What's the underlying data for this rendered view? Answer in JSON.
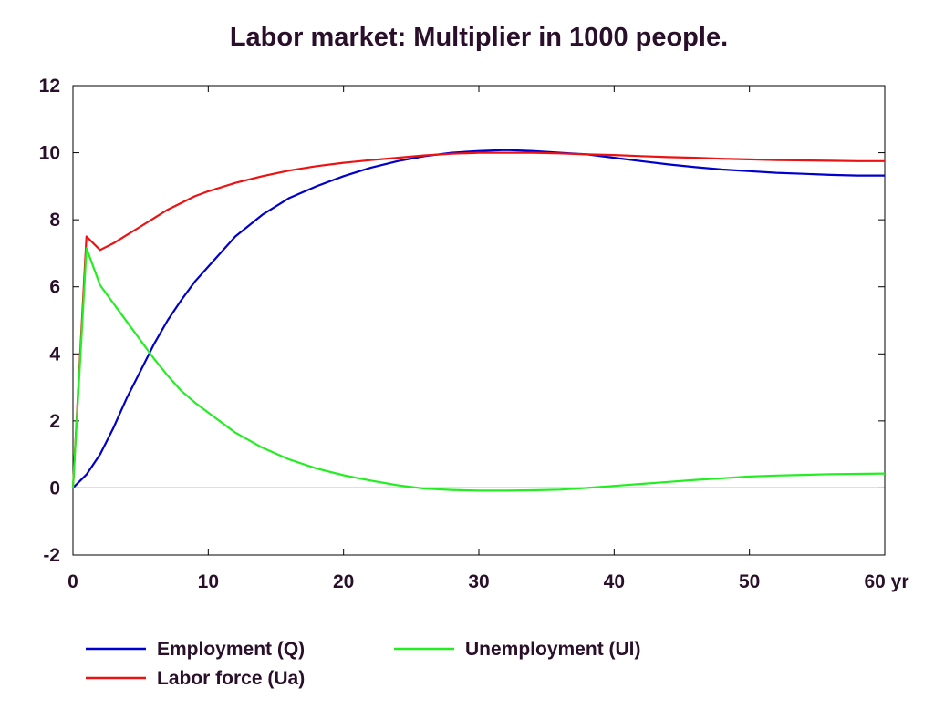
{
  "chart_data": {
    "type": "line",
    "title": "Labor market: Multiplier in 1000 people.",
    "xlim": [
      0,
      60
    ],
    "ylim": [
      -2,
      12
    ],
    "x_ticks": [
      0,
      10,
      20,
      30,
      40,
      50,
      60
    ],
    "x_tick_labels": [
      "0",
      "10",
      "20",
      "30",
      "40",
      "50",
      "60 yr"
    ],
    "y_ticks": [
      -2,
      0,
      2,
      4,
      6,
      8,
      10,
      12
    ],
    "y_tick_labels": [
      "-2",
      "0",
      "2",
      "4",
      "6",
      "8",
      "10",
      "12"
    ],
    "grid": false,
    "zero_line": true,
    "legend_position": "bottom",
    "series": [
      {
        "name": "Employment (Q)",
        "color": "#0000cc",
        "x": [
          0,
          1,
          2,
          3,
          4,
          5,
          6,
          7,
          8,
          9,
          10,
          12,
          14,
          16,
          18,
          20,
          22,
          24,
          26,
          28,
          30,
          32,
          34,
          36,
          38,
          40,
          42,
          44,
          46,
          48,
          50,
          52,
          54,
          56,
          58,
          60
        ],
        "y": [
          0,
          0.4,
          1.0,
          1.8,
          2.7,
          3.5,
          4.3,
          5.0,
          5.6,
          6.15,
          6.6,
          7.5,
          8.15,
          8.65,
          9.0,
          9.3,
          9.55,
          9.75,
          9.9,
          10.0,
          10.05,
          10.08,
          10.05,
          10.0,
          9.95,
          9.85,
          9.75,
          9.65,
          9.57,
          9.5,
          9.45,
          9.4,
          9.37,
          9.34,
          9.32,
          9.32
        ]
      },
      {
        "name": "Labor force (Ua)",
        "color": "#ee1111",
        "x": [
          0,
          1,
          2,
          3,
          4,
          5,
          6,
          7,
          8,
          9,
          10,
          12,
          14,
          16,
          18,
          20,
          22,
          24,
          26,
          28,
          30,
          32,
          34,
          36,
          38,
          40,
          42,
          44,
          46,
          48,
          50,
          52,
          54,
          56,
          58,
          60
        ],
        "y": [
          0,
          7.5,
          7.1,
          7.3,
          7.55,
          7.8,
          8.05,
          8.3,
          8.5,
          8.7,
          8.85,
          9.1,
          9.3,
          9.47,
          9.6,
          9.7,
          9.78,
          9.85,
          9.92,
          9.97,
          10.0,
          10.0,
          10.0,
          9.98,
          9.95,
          9.93,
          9.9,
          9.87,
          9.85,
          9.82,
          9.8,
          9.78,
          9.77,
          9.76,
          9.75,
          9.75
        ]
      },
      {
        "name": "Unemployment (Ul)",
        "color": "#22ee22",
        "x": [
          0,
          1,
          2,
          3,
          4,
          5,
          6,
          7,
          8,
          9,
          10,
          12,
          14,
          16,
          18,
          20,
          22,
          24,
          26,
          28,
          30,
          32,
          34,
          36,
          38,
          40,
          42,
          44,
          46,
          48,
          50,
          52,
          54,
          56,
          58,
          60
        ],
        "y": [
          0,
          7.15,
          6.05,
          5.5,
          4.95,
          4.4,
          3.85,
          3.35,
          2.9,
          2.55,
          2.25,
          1.65,
          1.2,
          0.85,
          0.58,
          0.38,
          0.22,
          0.08,
          -0.02,
          -0.06,
          -0.08,
          -0.08,
          -0.07,
          -0.05,
          0.0,
          0.06,
          0.12,
          0.18,
          0.24,
          0.29,
          0.34,
          0.37,
          0.39,
          0.41,
          0.42,
          0.43
        ]
      }
    ]
  }
}
